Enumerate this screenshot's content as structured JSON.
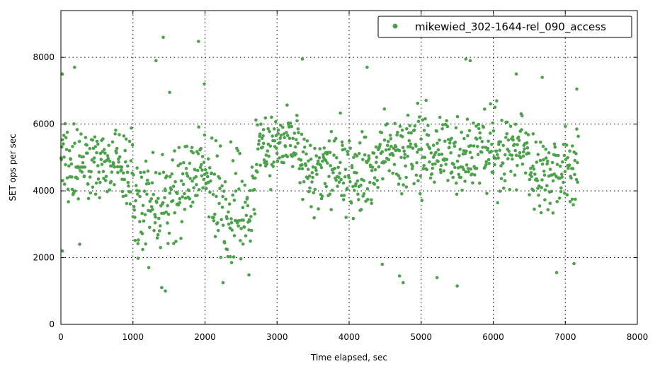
{
  "chart_data": {
    "type": "scatter",
    "xlabel": "Time elapsed, sec",
    "ylabel": "SET ops per sec",
    "xlim": [
      0,
      8000
    ],
    "ylim": [
      0,
      9400
    ],
    "xticks": [
      0,
      1000,
      2000,
      3000,
      4000,
      5000,
      6000,
      7000,
      8000
    ],
    "yticks": [
      0,
      2000,
      4000,
      6000,
      8000
    ],
    "grid": true,
    "legend_position": "top-right",
    "colors": {
      "series": "#4ca24a"
    },
    "series": [
      {
        "name": "mikewied_302-1644-rel_090_access",
        "x_start": 0,
        "x_end": 7180,
        "n_points": 1100,
        "bands": [
          {
            "x": [
              0,
              1000
            ],
            "y_center": 4800,
            "y_spread": [
              3100,
              6900
            ]
          },
          {
            "x": [
              1000,
              1700
            ],
            "y_center": 3700,
            "y_spread": [
              1600,
              6500
            ]
          },
          {
            "x": [
              1700,
              2100
            ],
            "y_center": 4600,
            "y_spread": [
              2500,
              6500
            ]
          },
          {
            "x": [
              2100,
              2700
            ],
            "y_center": 3600,
            "y_spread": [
              1300,
              6300
            ]
          },
          {
            "x": [
              2700,
              3300
            ],
            "y_center": 5400,
            "y_spread": [
              3100,
              7000
            ]
          },
          {
            "x": [
              3300,
              4400
            ],
            "y_center": 4600,
            "y_spread": [
              2500,
              6800
            ]
          },
          {
            "x": [
              4400,
              6500
            ],
            "y_center": 5200,
            "y_spread": [
              3200,
              7200
            ]
          },
          {
            "x": [
              6500,
              7180
            ],
            "y_center": 4600,
            "y_spread": [
              2500,
              6500
            ]
          }
        ],
        "notable_points": [
          [
            20,
            2200
          ],
          [
            20,
            7500
          ],
          [
            190,
            7700
          ],
          [
            260,
            2400
          ],
          [
            1070,
            1980
          ],
          [
            1220,
            1700
          ],
          [
            1320,
            7900
          ],
          [
            1400,
            1100
          ],
          [
            1420,
            8600
          ],
          [
            1450,
            1000
          ],
          [
            1510,
            6950
          ],
          [
            1910,
            8480
          ],
          [
            1990,
            7200
          ],
          [
            2250,
            1250
          ],
          [
            2370,
            1850
          ],
          [
            2610,
            1480
          ],
          [
            3350,
            7950
          ],
          [
            4250,
            7700
          ],
          [
            4460,
            1800
          ],
          [
            4700,
            1450
          ],
          [
            4750,
            1250
          ],
          [
            5220,
            1400
          ],
          [
            5500,
            1150
          ],
          [
            5620,
            7950
          ],
          [
            5680,
            7900
          ],
          [
            6320,
            7500
          ],
          [
            6680,
            7400
          ],
          [
            6880,
            1550
          ],
          [
            7120,
            1820
          ],
          [
            7160,
            7050
          ]
        ]
      }
    ]
  }
}
